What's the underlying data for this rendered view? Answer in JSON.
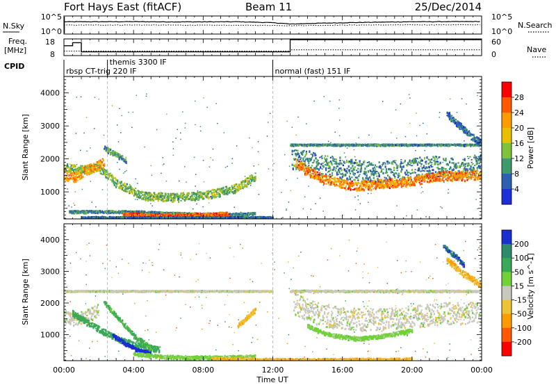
{
  "header": {
    "station": "Fort Hays East (fitACF)",
    "beam": "Beam 11",
    "date": "25/Dec/2014"
  },
  "noise_panel": {
    "left_label": "N.Sky",
    "right_label": "N.Search",
    "left_ticks": [
      "10^5",
      "10^0"
    ],
    "right_ticks": [
      "10^5",
      "10^0"
    ]
  },
  "freq_panel": {
    "left_label_1": "Freq.",
    "left_label_2": "[MHz]",
    "left_ticks": [
      "18",
      "8"
    ],
    "right_label": "Nave",
    "right_ticks": [
      "60",
      "0"
    ]
  },
  "cpid_panel": {
    "label": "CPID",
    "modes": [
      {
        "name": "rbsp CT-trig 220 IF",
        "start_hour": 0.0
      },
      {
        "name": "themis 3300 IF",
        "start_hour": 2.5
      },
      {
        "name": "normal (fast) 151 IF",
        "start_hour": 12.0
      }
    ]
  },
  "time_axis": {
    "label": "Time UT",
    "ticks": [
      "00:00",
      "04:00",
      "08:00",
      "12:00",
      "16:00",
      "20:00",
      "00:00"
    ]
  },
  "power_colorbar": {
    "label": "Power [dB]",
    "ticks": [
      "28",
      "24",
      "20",
      "16",
      "12",
      "8",
      "4"
    ],
    "colors": [
      "#ff0000",
      "#ff5a00",
      "#ff9a00",
      "#e8c000",
      "#7fc23a",
      "#3f9a6a",
      "#2f5fb0",
      "#1c2fd8",
      "#0000ff"
    ]
  },
  "velocity_colorbar": {
    "label": "Velocity [m s^-1]",
    "ticks": [
      "200",
      "100",
      "50",
      "15",
      "-15",
      "-50",
      "-100",
      "-200"
    ],
    "colors": [
      "#1a2fd0",
      "#2d8a6a",
      "#39a957",
      "#6fd235",
      "#c8c8c0",
      "#ecc437",
      "#ff9a00",
      "#ff5a00",
      "#ff0000"
    ]
  },
  "chart_data": [
    {
      "type": "line",
      "name": "noise",
      "x_unit": "hours UT",
      "xlim": [
        0,
        24
      ],
      "series": [
        {
          "name": "N.Sky",
          "x": [
            0,
            2,
            4,
            6,
            8,
            10,
            12,
            13,
            16,
            20,
            24
          ],
          "y": [
            3000,
            3000,
            3200,
            2800,
            2800,
            3000,
            1500,
            600,
            1500,
            3000,
            3500
          ]
        },
        {
          "name": "N.Search",
          "x": [
            0,
            4,
            8,
            12,
            13,
            16,
            20,
            24
          ],
          "y": [
            300,
            320,
            280,
            250,
            200,
            300,
            350,
            380
          ]
        }
      ]
    },
    {
      "type": "line",
      "name": "frequency_and_nave",
      "xlim": [
        0,
        24
      ],
      "series": [
        {
          "name": "Freq [MHz]",
          "ylim": [
            8,
            18
          ],
          "x": [
            0,
            0.5,
            0.5,
            1.0,
            1.0,
            13.0,
            13.0,
            24
          ],
          "y": [
            14,
            14,
            16,
            16,
            10,
            10,
            18,
            18
          ]
        },
        {
          "name": "Nave",
          "ylim": [
            0,
            60
          ],
          "x": [
            0,
            13,
            13,
            24
          ],
          "y": [
            15,
            15,
            20,
            20
          ]
        }
      ]
    },
    {
      "type": "heatmap",
      "name": "power",
      "xlim": [
        0,
        24
      ],
      "ylim": [
        180,
        4500
      ],
      "ylabel": "Slant Range [km]",
      "yticks": [
        1000,
        2000,
        3000,
        4000
      ],
      "xlabel": "",
      "clim": [
        0,
        30
      ],
      "bands": [
        {
          "x": [
            0.0,
            1.0,
            2.0,
            3.0,
            4.5,
            6.0,
            8.0,
            10.0,
            11.0
          ],
          "y": [
            1750,
            1700,
            1750,
            1300,
            900,
            850,
            900,
            1150,
            1500
          ],
          "width_km": 250,
          "value": 14
        },
        {
          "x": [
            0.0,
            0.4,
            0.8,
            1.2,
            1.8,
            2.3
          ],
          "y": [
            1550,
            1450,
            1500,
            1650,
            1800,
            1900
          ],
          "width_km": 300,
          "value": 22
        },
        {
          "x": [
            2.3,
            3.0,
            3.6
          ],
          "y": [
            2350,
            2150,
            1950
          ],
          "width_km": 150,
          "value": 12
        },
        {
          "x": [
            0.3,
            2.0,
            4.0,
            6.0,
            8.0,
            10.0,
            11.0
          ],
          "y": [
            420,
            420,
            420,
            370,
            340,
            340,
            360
          ],
          "width_km": 70,
          "value": 10
        },
        {
          "x": [
            3.4,
            4.5,
            5.5,
            6.5,
            7.5,
            8.5,
            9.5
          ],
          "y": [
            330,
            310,
            300,
            300,
            310,
            330,
            360
          ],
          "width_km": 120,
          "value": 26
        },
        {
          "x": [
            13.1,
            14.0,
            15.0,
            16.0,
            17.0,
            18.0,
            19.0,
            20.0,
            21.0,
            22.0,
            23.0,
            24.0
          ],
          "y": [
            2050,
            1950,
            1800,
            1750,
            1650,
            1600,
            1650,
            1700,
            1800,
            1750,
            1750,
            1850
          ],
          "width_km": 650,
          "value": 10
        },
        {
          "x": [
            13.3,
            14.0,
            15.0,
            16.0,
            17.0,
            18.0,
            19.0,
            20.0,
            21.0,
            22.0,
            23.0,
            24.0
          ],
          "y": [
            1900,
            1650,
            1400,
            1250,
            1200,
            1250,
            1300,
            1350,
            1450,
            1500,
            1500,
            1550
          ],
          "width_km": 280,
          "value": 24
        },
        {
          "x": [
            13.0,
            16.0,
            20.0,
            24.0
          ],
          "y": [
            2450,
            2450,
            2450,
            2450
          ],
          "width_km": 40,
          "value": 10
        },
        {
          "x": [
            22.0,
            22.8,
            23.4,
            24.0
          ],
          "y": [
            3400,
            3000,
            2700,
            2500
          ],
          "width_km": 200,
          "value": 8
        },
        {
          "x": [
            1.0,
            2.0,
            4.0,
            6.0,
            8.0,
            10.0,
            12.0
          ],
          "y": [
            240,
            240,
            240,
            240,
            240,
            240,
            240
          ],
          "width_km": 60,
          "value": 8
        }
      ]
    },
    {
      "type": "heatmap",
      "name": "velocity",
      "xlim": [
        0,
        24
      ],
      "ylim": [
        180,
        4500
      ],
      "ylabel": "Slant Range [km]",
      "yticks": [
        1000,
        2000,
        3000,
        4000
      ],
      "xlabel": "Time UT",
      "clim": [
        -200,
        200
      ],
      "bands": [
        {
          "x": [
            0.0,
            0.5,
            1.0,
            1.5,
            2.0
          ],
          "y": [
            1600,
            1500,
            1550,
            1650,
            1800
          ],
          "width_km": 400,
          "value": 0
        },
        {
          "x": [
            0.5,
            1.5,
            2.5,
            3.5,
            4.5,
            5.5
          ],
          "y": [
            1700,
            1350,
            1050,
            800,
            650,
            550
          ],
          "width_km": 180,
          "value": 70
        },
        {
          "x": [
            2.3,
            3.2,
            4.0,
            5.0
          ],
          "y": [
            2050,
            1500,
            1000,
            600
          ],
          "width_km": 140,
          "value": 60
        },
        {
          "x": [
            2.8,
            3.5,
            4.2,
            5.0
          ],
          "y": [
            1000,
            750,
            550,
            420
          ],
          "width_km": 120,
          "value": 220
        },
        {
          "x": [
            4.0,
            5.5,
            7.0,
            8.5,
            10.0,
            11.0
          ],
          "y": [
            420,
            330,
            300,
            300,
            310,
            330
          ],
          "width_km": 110,
          "value": 30
        },
        {
          "x": [
            8.5,
            9.5,
            10.5,
            11.5,
            13.0,
            15.0,
            17.0,
            20.0
          ],
          "y": [
            260,
            250,
            250,
            240,
            230,
            230,
            240,
            250
          ],
          "width_km": 80,
          "value": -40
        },
        {
          "x": [
            10.0,
            10.6,
            11.0
          ],
          "y": [
            1300,
            1600,
            1800
          ],
          "width_km": 150,
          "value": -40
        },
        {
          "x": [
            13.2,
            14.0,
            15.0,
            16.0,
            17.0,
            18.0,
            19.0,
            20.0,
            21.0,
            22.0,
            23.0,
            24.0
          ],
          "y": [
            2000,
            1800,
            1600,
            1550,
            1500,
            1500,
            1550,
            1600,
            1650,
            1700,
            1700,
            1750
          ],
          "width_km": 700,
          "value": 0
        },
        {
          "x": [
            14.0,
            15.0,
            16.0,
            17.0,
            18.0,
            19.0,
            20.0
          ],
          "y": [
            1300,
            1050,
            950,
            900,
            950,
            1050,
            1150
          ],
          "width_km": 120,
          "value": 30
        },
        {
          "x": [
            13.0,
            16.0,
            20.0,
            24.0
          ],
          "y": [
            2400,
            2400,
            2400,
            2400
          ],
          "width_km": 50,
          "value": 0
        },
        {
          "x": [
            0.0,
            4.0,
            8.0,
            12.0
          ],
          "y": [
            2400,
            2400,
            2400,
            2400
          ],
          "width_km": 30,
          "value": 0
        },
        {
          "x": [
            22.0,
            22.8,
            23.4,
            24.0
          ],
          "y": [
            3400,
            3000,
            2800,
            2550
          ],
          "width_km": 200,
          "value": -50
        },
        {
          "x": [
            21.8,
            22.5,
            23.0
          ],
          "y": [
            3800,
            3500,
            3200
          ],
          "width_km": 150,
          "value": 200
        }
      ]
    }
  ]
}
